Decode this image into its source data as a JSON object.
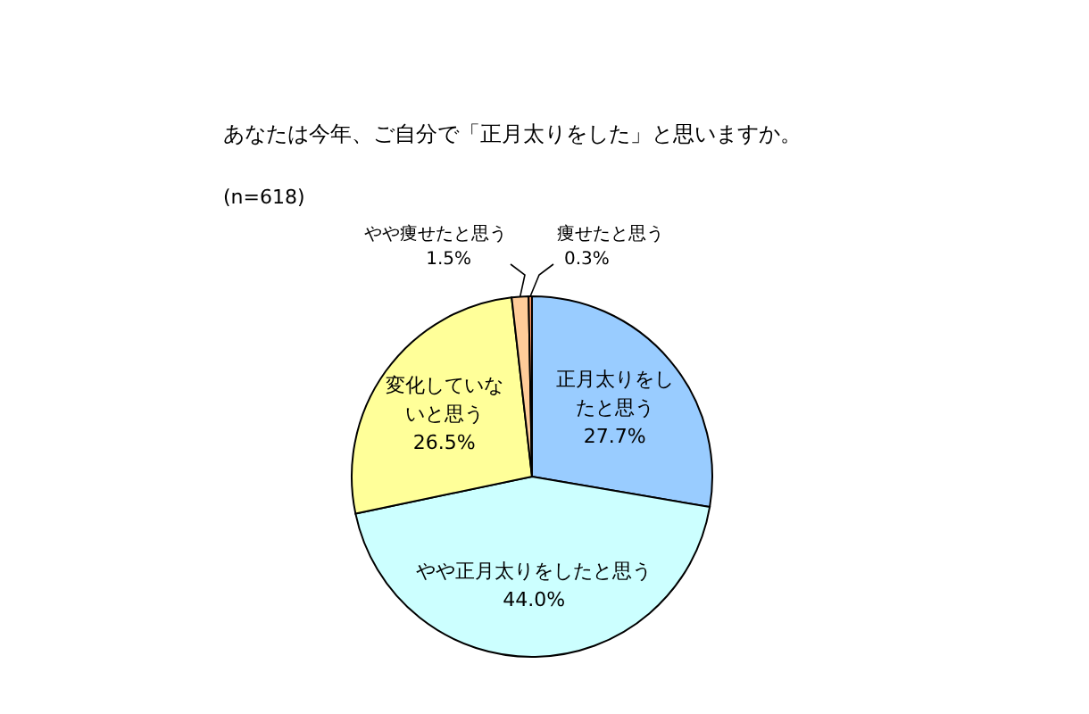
{
  "chart_data": {
    "type": "pie",
    "title": "あなたは今年、ご自分で「正月太りをした」と思いますか。",
    "annotations": [
      "(n=618)"
    ],
    "categories": [
      "正月太りをしたと思う",
      "やや正月太りをしたと思う",
      "変化していないと思う",
      "やや痩せたと思う",
      "痩せたと思う"
    ],
    "values": [
      27.7,
      44.0,
      26.5,
      1.5,
      0.3
    ],
    "value_labels": [
      "27.7%",
      "44.0%",
      "26.5%",
      "1.5%",
      "0.3%"
    ],
    "colors": [
      "#99ccff",
      "#ccffff",
      "#ffff99",
      "#ffcc99",
      "#ff9966"
    ]
  }
}
